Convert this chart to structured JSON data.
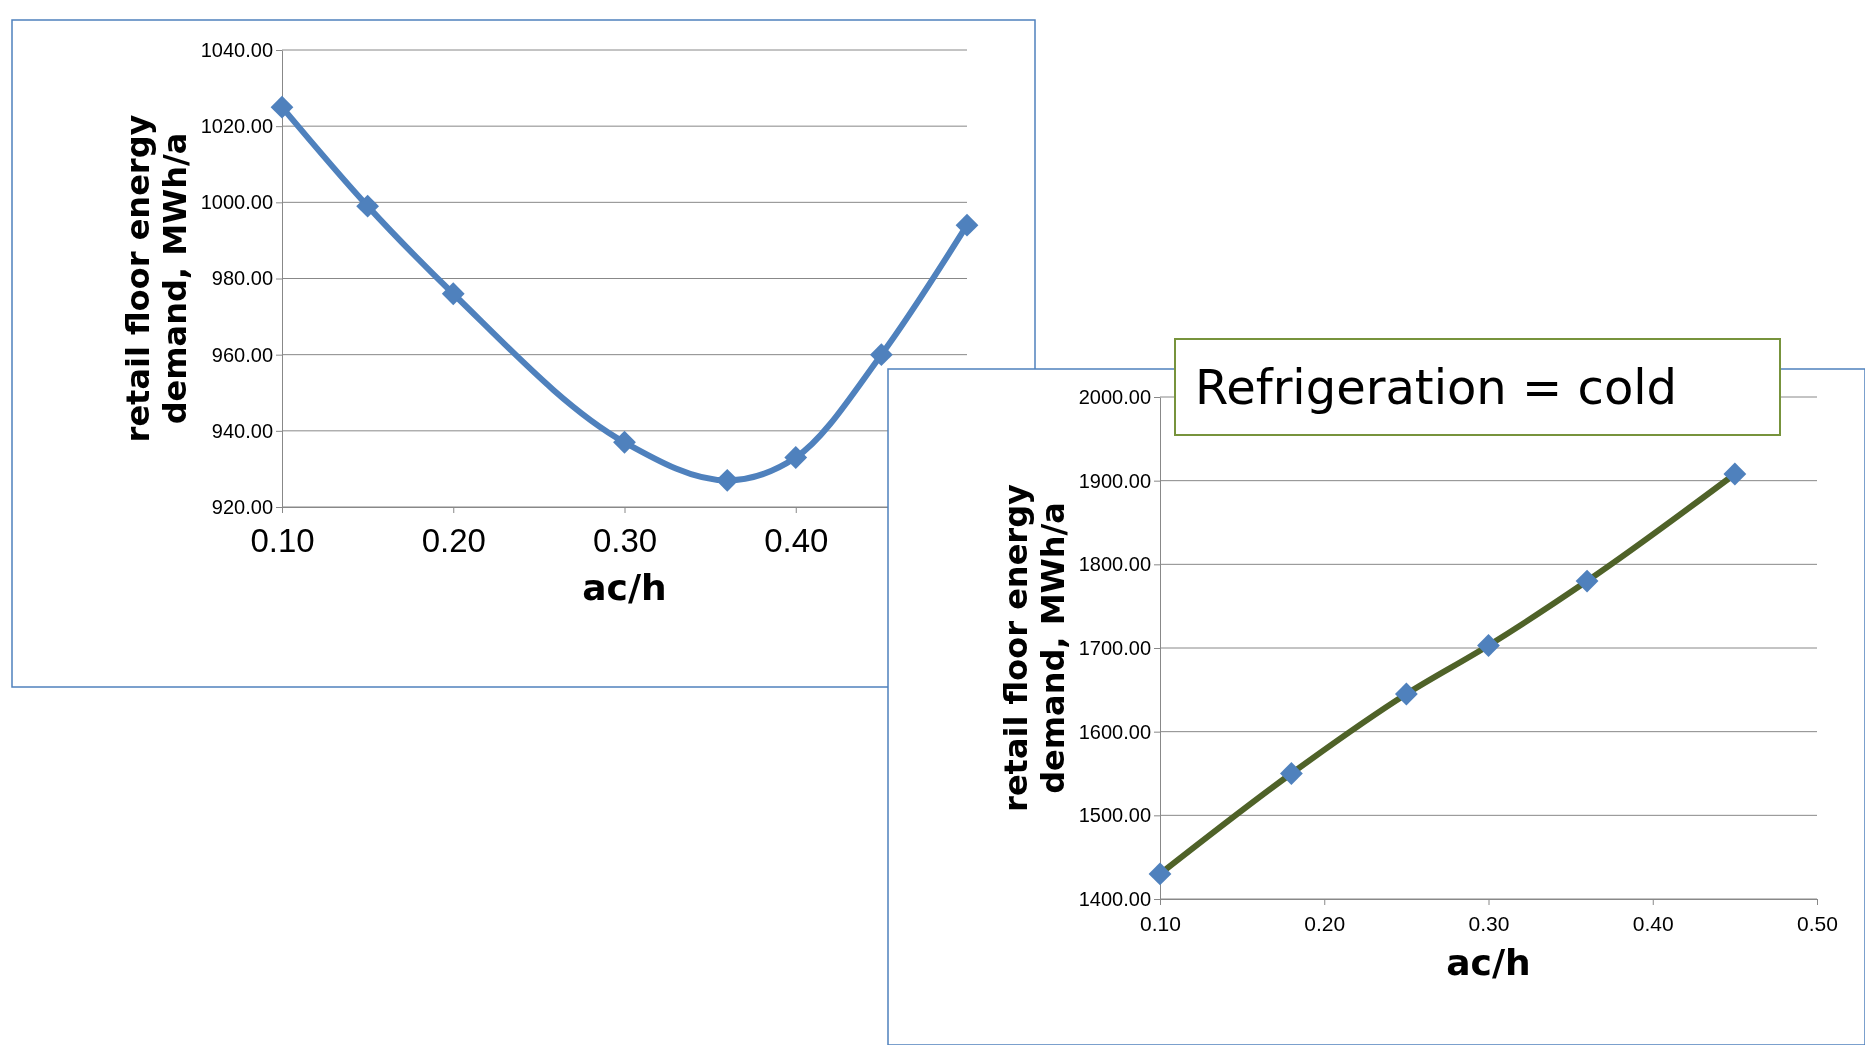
{
  "chart_data": [
    {
      "type": "line",
      "xlabel": "ac/h",
      "ylabel": "retail floor energy demand, MWh/a",
      "x": [
        0.1,
        0.15,
        0.2,
        0.3,
        0.36,
        0.4,
        0.45,
        0.5
      ],
      "xlim": [
        0.1,
        0.5
      ],
      "xticks": [
        {
          "value": 0.1,
          "label": "0.10"
        },
        {
          "value": 0.2,
          "label": "0.20"
        },
        {
          "value": 0.3,
          "label": "0.30"
        },
        {
          "value": 0.4,
          "label": "0.40"
        }
      ],
      "ylim": [
        920,
        1040
      ],
      "yticks": [
        {
          "value": 920,
          "label": "920.00"
        },
        {
          "value": 940,
          "label": "940.00"
        },
        {
          "value": 960,
          "label": "960.00"
        },
        {
          "value": 980,
          "label": "980.00"
        },
        {
          "value": 1000,
          "label": "1000.00"
        },
        {
          "value": 1020,
          "label": "1020.00"
        },
        {
          "value": 1040,
          "label": "1040.00"
        }
      ],
      "grid": "y",
      "marker": "diamond",
      "series": [
        {
          "color": "#4f81bd",
          "values": [
            1025,
            999,
            976,
            937,
            927,
            933,
            960,
            994
          ]
        }
      ]
    },
    {
      "type": "line",
      "title": "Refrigeration = cold",
      "xlabel": "ac/h",
      "ylabel": "retail floor energy demand, MWh/a",
      "x": [
        0.1,
        0.18,
        0.25,
        0.3,
        0.36,
        0.45
      ],
      "xlim": [
        0.1,
        0.5
      ],
      "xticks": [
        {
          "value": 0.1,
          "label": "0.10"
        },
        {
          "value": 0.2,
          "label": "0.20"
        },
        {
          "value": 0.3,
          "label": "0.30"
        },
        {
          "value": 0.4,
          "label": "0.40"
        },
        {
          "value": 0.5,
          "label": "0.50"
        }
      ],
      "ylim": [
        1400,
        2000
      ],
      "yticks": [
        {
          "value": 1400,
          "label": "1400.00"
        },
        {
          "value": 1500,
          "label": "1500.00"
        },
        {
          "value": 1600,
          "label": "1600.00"
        },
        {
          "value": 1700,
          "label": "1700.00"
        },
        {
          "value": 1800,
          "label": "1800.00"
        },
        {
          "value": 1900,
          "label": "1900.00"
        },
        {
          "value": 2000,
          "label": "2000.00"
        }
      ],
      "grid": "y",
      "marker": "diamond",
      "series": [
        {
          "color": "#4f6228",
          "colors": [
            "#4f81bd",
            "#4f81bd",
            "#4f81bd",
            "#4f81bd",
            "#4f81bd",
            "#4f81bd"
          ],
          "values": [
            1430,
            1550,
            1645,
            1703,
            1780,
            1908
          ]
        }
      ]
    }
  ]
}
